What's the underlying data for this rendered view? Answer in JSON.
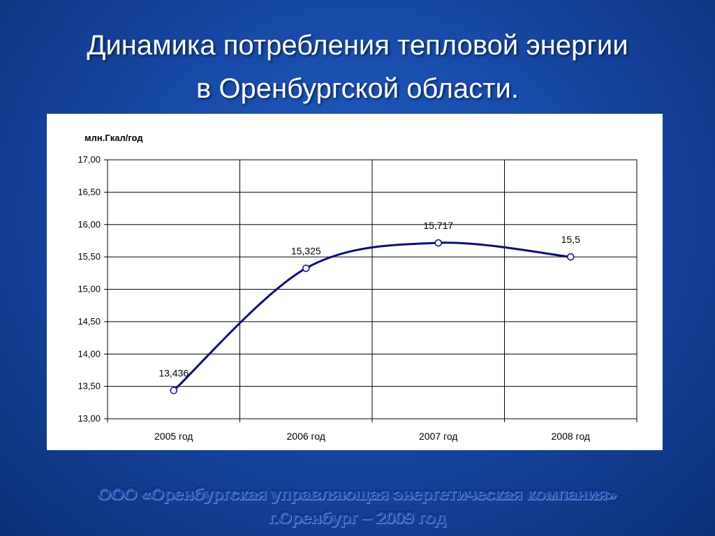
{
  "slide": {
    "title_line1": "Динамика потребления тепловой энергии",
    "title_line2": "в Оренбургской области.",
    "footer_line1": "ООО «Оренбургская управляющая энергетическая компания»",
    "footer_line2": "г.Оренбург – 2009 год"
  },
  "chart_data": {
    "type": "line",
    "title": "",
    "xlabel": "",
    "ylabel": "млн.Гкал/год",
    "categories": [
      "2005 год",
      "2006 год",
      "2007 год",
      "2008 год"
    ],
    "series": [
      {
        "values": [
          13.436,
          15.325,
          15.717,
          15.5
        ],
        "labels": [
          "13,436",
          "15,325",
          "15,717",
          "15,5"
        ],
        "color": "#0b0b7a"
      }
    ],
    "ylim": [
      13.0,
      17.0
    ],
    "yticks": [
      "13,00",
      "13,50",
      "14,00",
      "14,50",
      "15,00",
      "15,50",
      "16,00",
      "16,50",
      "17,00"
    ],
    "grid": true,
    "legend": "none",
    "smooth": true
  }
}
